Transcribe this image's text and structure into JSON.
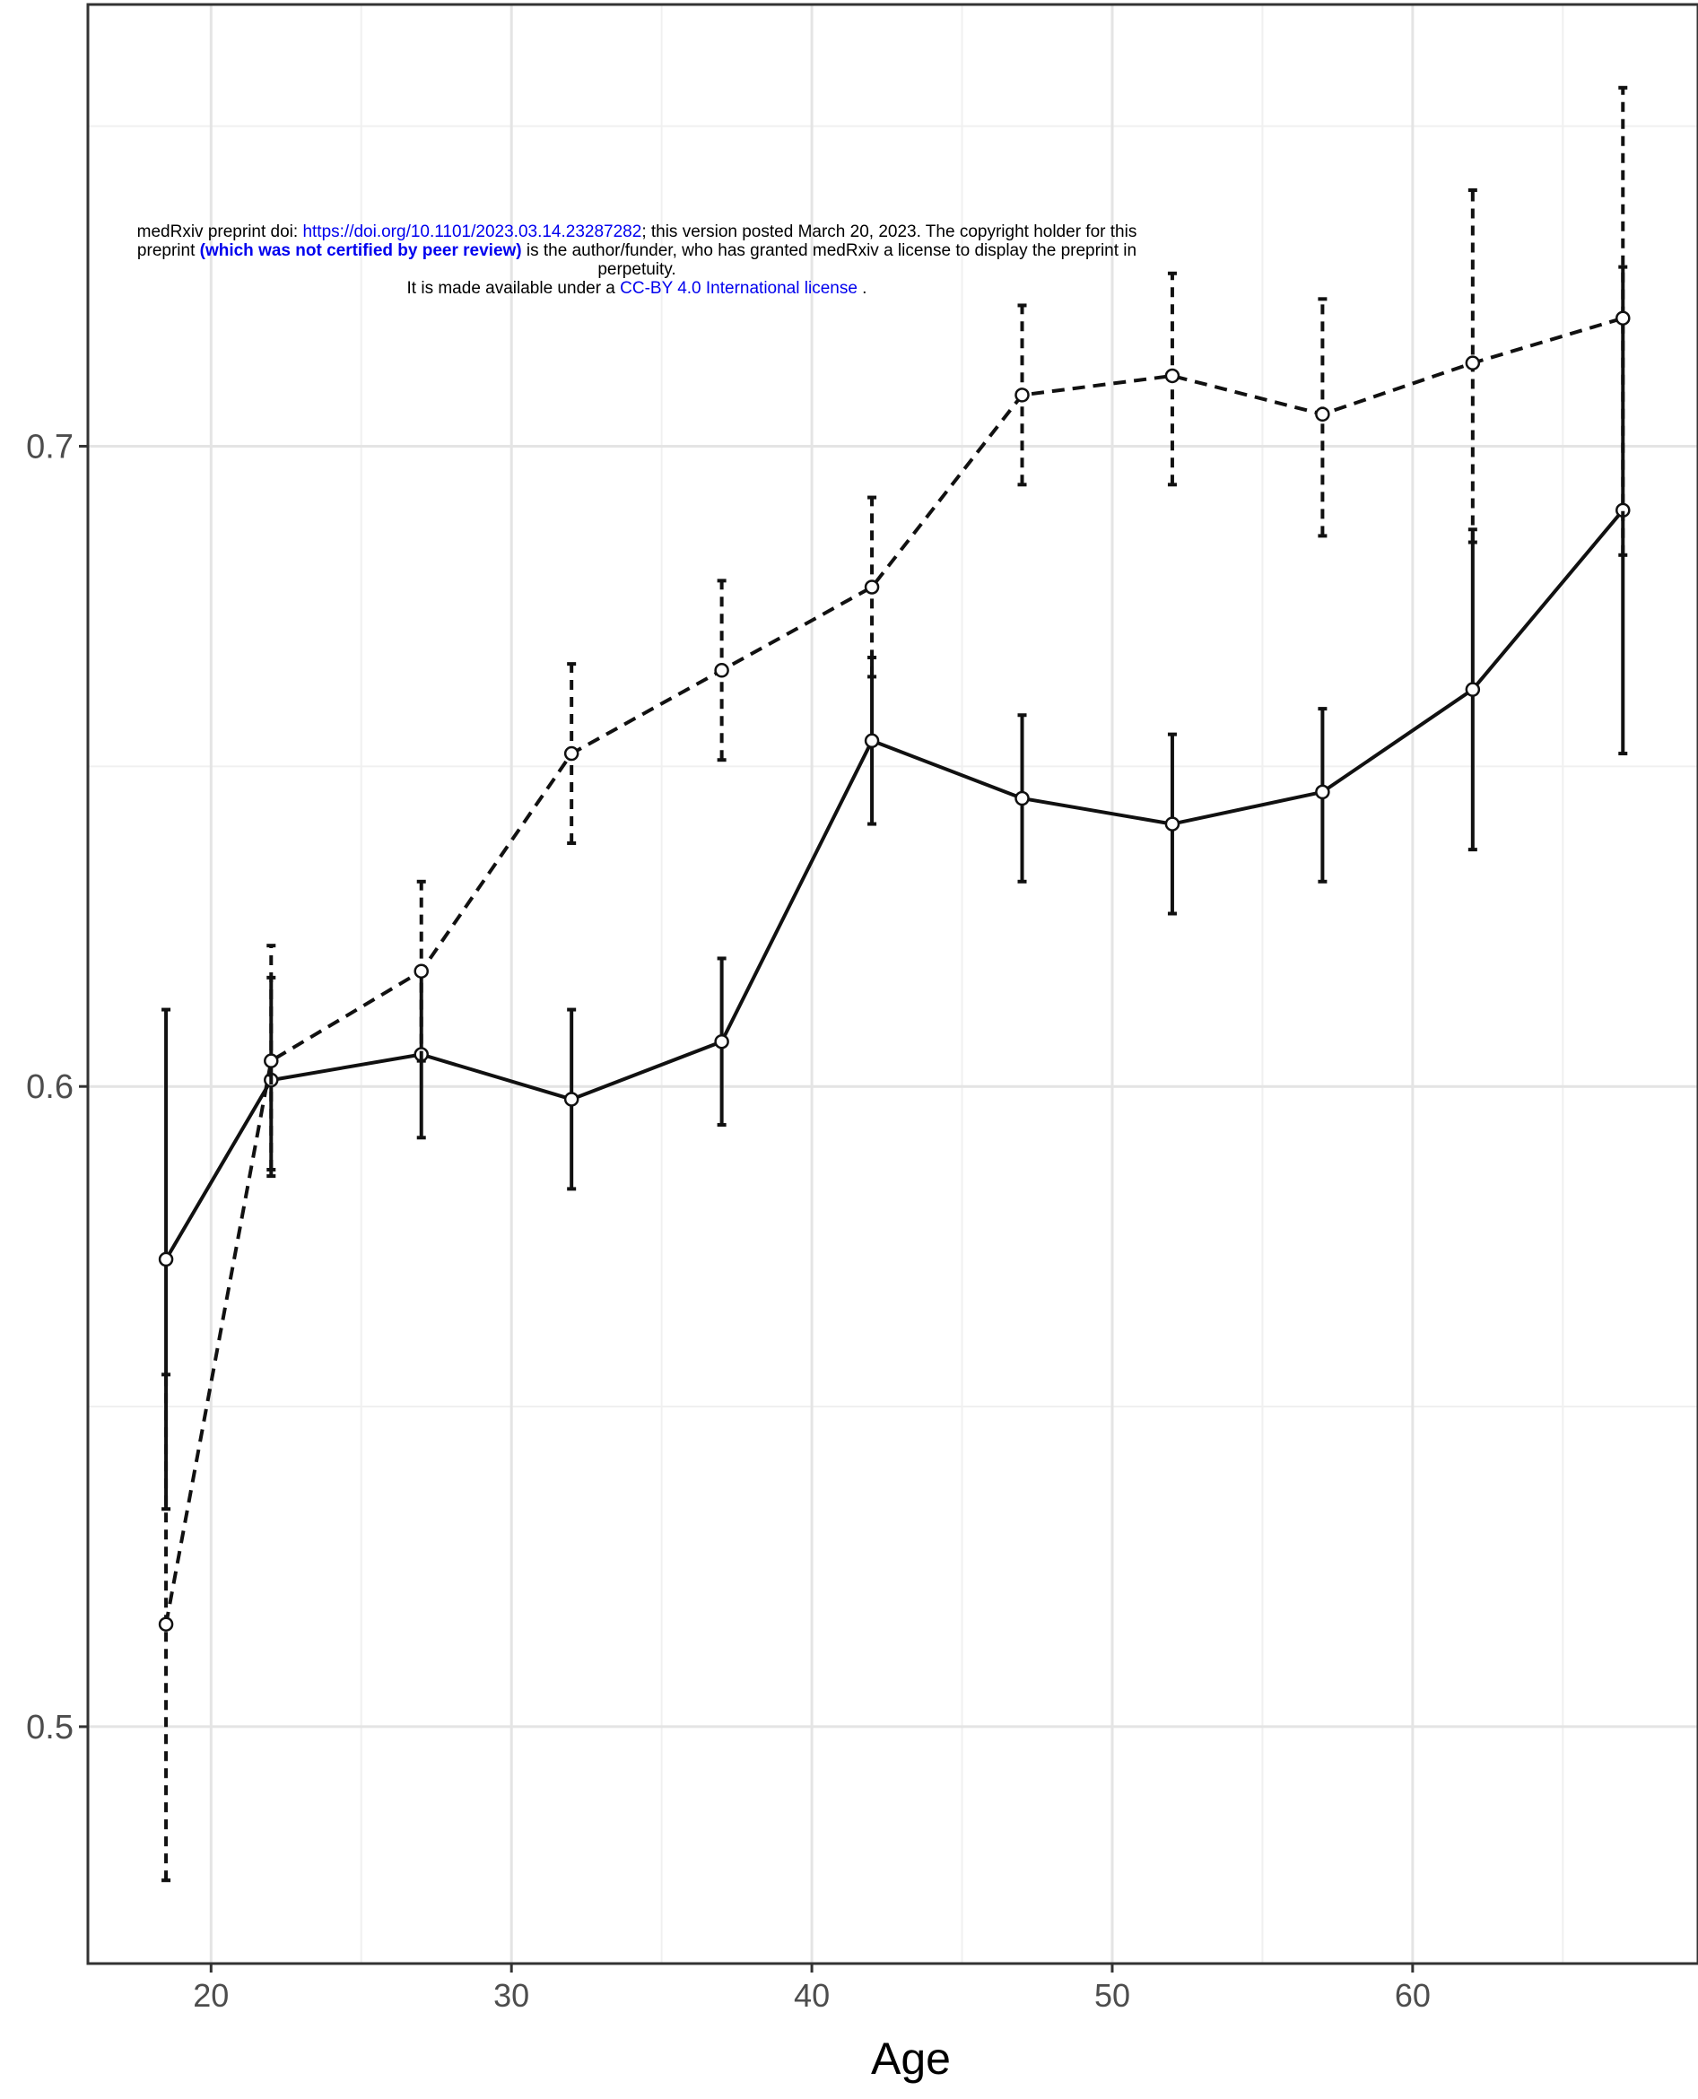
{
  "notice": {
    "line1_prefix": "medRxiv preprint doi: ",
    "doi_link": "https://doi.org/10.1101/2023.03.14.23287282",
    "line1_suffix": "; this version posted March 20, 2023. The copyright holder for this",
    "line2_prefix": "preprint ",
    "peer_review_link": "(which was not certified by peer review)",
    "line2_suffix": " is the author/funder, who has granted medRxiv a license to display the preprint in",
    "line3": "perpetuity.",
    "line4_prefix": "It is made available under a ",
    "license_link": "CC-BY 4.0 International license",
    "line4_suffix": " ."
  },
  "chart_data": {
    "type": "line",
    "xlabel": "Age",
    "ylabel": "",
    "xlim": [
      15.9,
      69.5
    ],
    "ylim": [
      0.463,
      0.769
    ],
    "x_ticks": [
      20,
      30,
      40,
      50,
      60
    ],
    "y_ticks": [
      0.5,
      0.6,
      0.7
    ],
    "x_tick_labels": [
      "20",
      "30",
      "40",
      "50",
      "60"
    ],
    "y_tick_labels": [
      "0.5",
      "0.6",
      "0.7"
    ],
    "grid": true,
    "series": [
      {
        "line_style": "solid",
        "x": [
          18.5,
          22,
          27,
          32,
          37,
          42,
          47,
          52,
          57,
          62,
          67
        ],
        "y": [
          0.573,
          0.601,
          0.605,
          0.598,
          0.607,
          0.654,
          0.645,
          0.641,
          0.646,
          0.662,
          0.69
        ],
        "lower": [
          0.534,
          0.586,
          0.592,
          0.584,
          0.594,
          0.641,
          0.632,
          0.627,
          0.632,
          0.637,
          0.652
        ],
        "upper": [
          0.612,
          0.617,
          0.618,
          0.612,
          0.62,
          0.667,
          0.658,
          0.655,
          0.659,
          0.687,
          0.728
        ]
      },
      {
        "line_style": "dashed",
        "x": [
          18.5,
          22,
          27,
          32,
          37,
          42,
          47,
          52,
          57,
          62,
          67
        ],
        "y": [
          0.516,
          0.604,
          0.618,
          0.652,
          0.665,
          0.678,
          0.708,
          0.711,
          0.705,
          0.713,
          0.72
        ],
        "lower": [
          0.476,
          0.587,
          0.604,
          0.638,
          0.651,
          0.664,
          0.694,
          0.694,
          0.686,
          0.685,
          0.683
        ],
        "upper": [
          0.555,
          0.622,
          0.632,
          0.666,
          0.679,
          0.692,
          0.722,
          0.727,
          0.723,
          0.74,
          0.756
        ]
      }
    ]
  }
}
